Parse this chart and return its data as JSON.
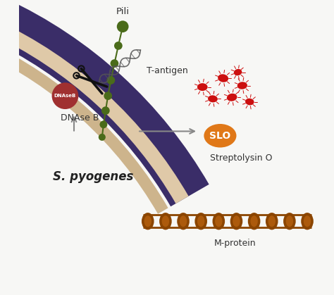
{
  "bg_color": "#f7f7f5",
  "cell_wall_purple": "#3a2d68",
  "cell_wall_tan1": "#dfc9a8",
  "cell_wall_tan2": "#cdb48c",
  "pili_color": "#4a6b1a",
  "dnaseb_color": "#a03030",
  "slo_color": "#e07818",
  "mprotein_color": "#8b4500",
  "rbc_color": "#cc0f0f",
  "rbc_inner": "#e83030",
  "arrow_color": "#888888",
  "text_color": "#333333",
  "scissors_color": "#111111",
  "label_pili": "Pili",
  "label_tantigen": "T-antigen",
  "label_dnaseb": "DNAse B",
  "label_slo": "SLO",
  "label_streptolysin": "Streptolysin O",
  "label_mprotein": "M-protein",
  "label_spyogenes": "S. pyogenes",
  "label_dnaseb_circle": "DNAseB"
}
